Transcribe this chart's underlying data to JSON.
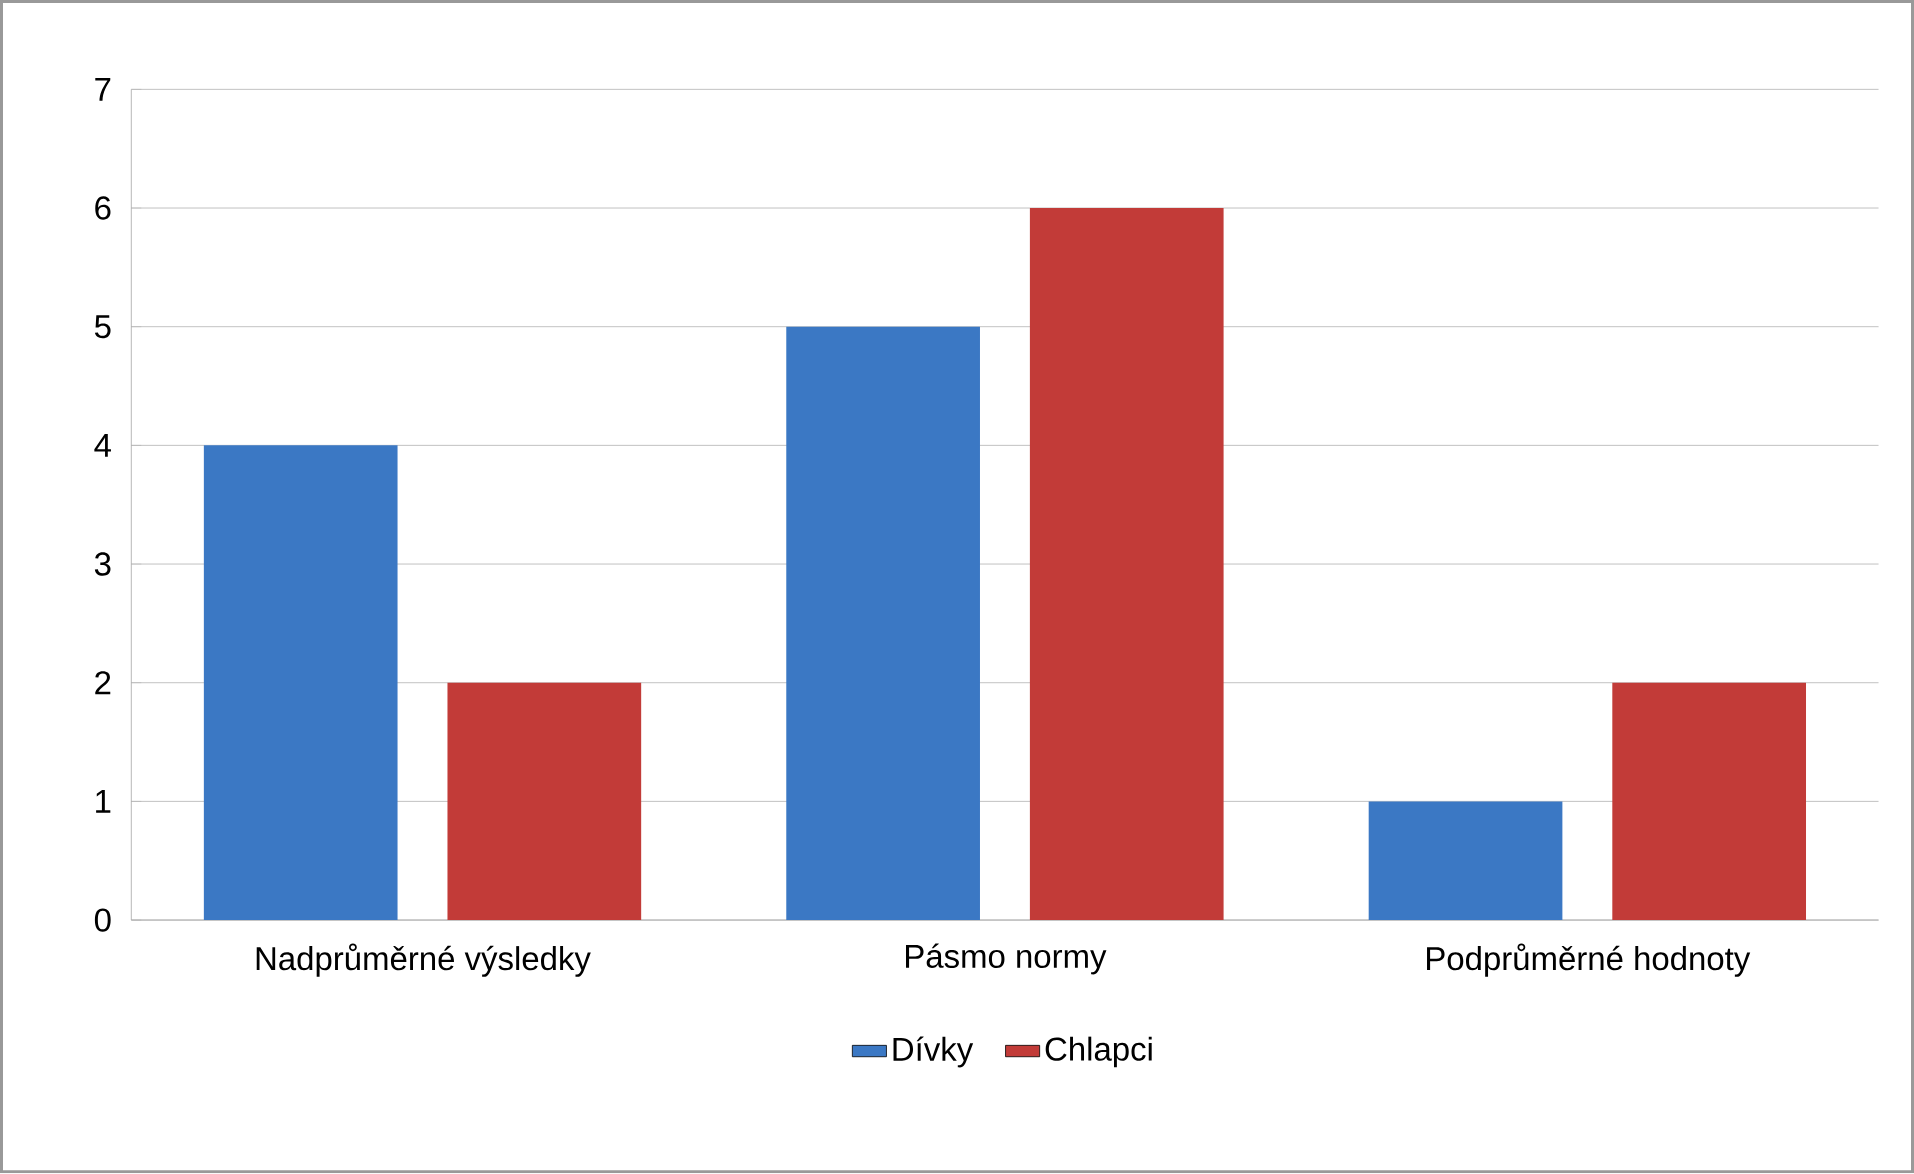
{
  "chart_data": {
    "type": "bar",
    "categories": [
      "Nadprůměrné výsledky",
      "Pásmo normy",
      "Podprůměrné hodnoty"
    ],
    "series": [
      {
        "name": "Dívky",
        "color": "#3b78c4",
        "values": [
          4,
          5,
          1
        ]
      },
      {
        "name": "Chlapci",
        "color": "#c23b38",
        "values": [
          2,
          6,
          2
        ]
      }
    ],
    "ylim": [
      0,
      7
    ],
    "yticks": [
      0,
      1,
      2,
      3,
      4,
      5,
      6,
      7
    ],
    "grid": "y",
    "legend": "bottom"
  }
}
